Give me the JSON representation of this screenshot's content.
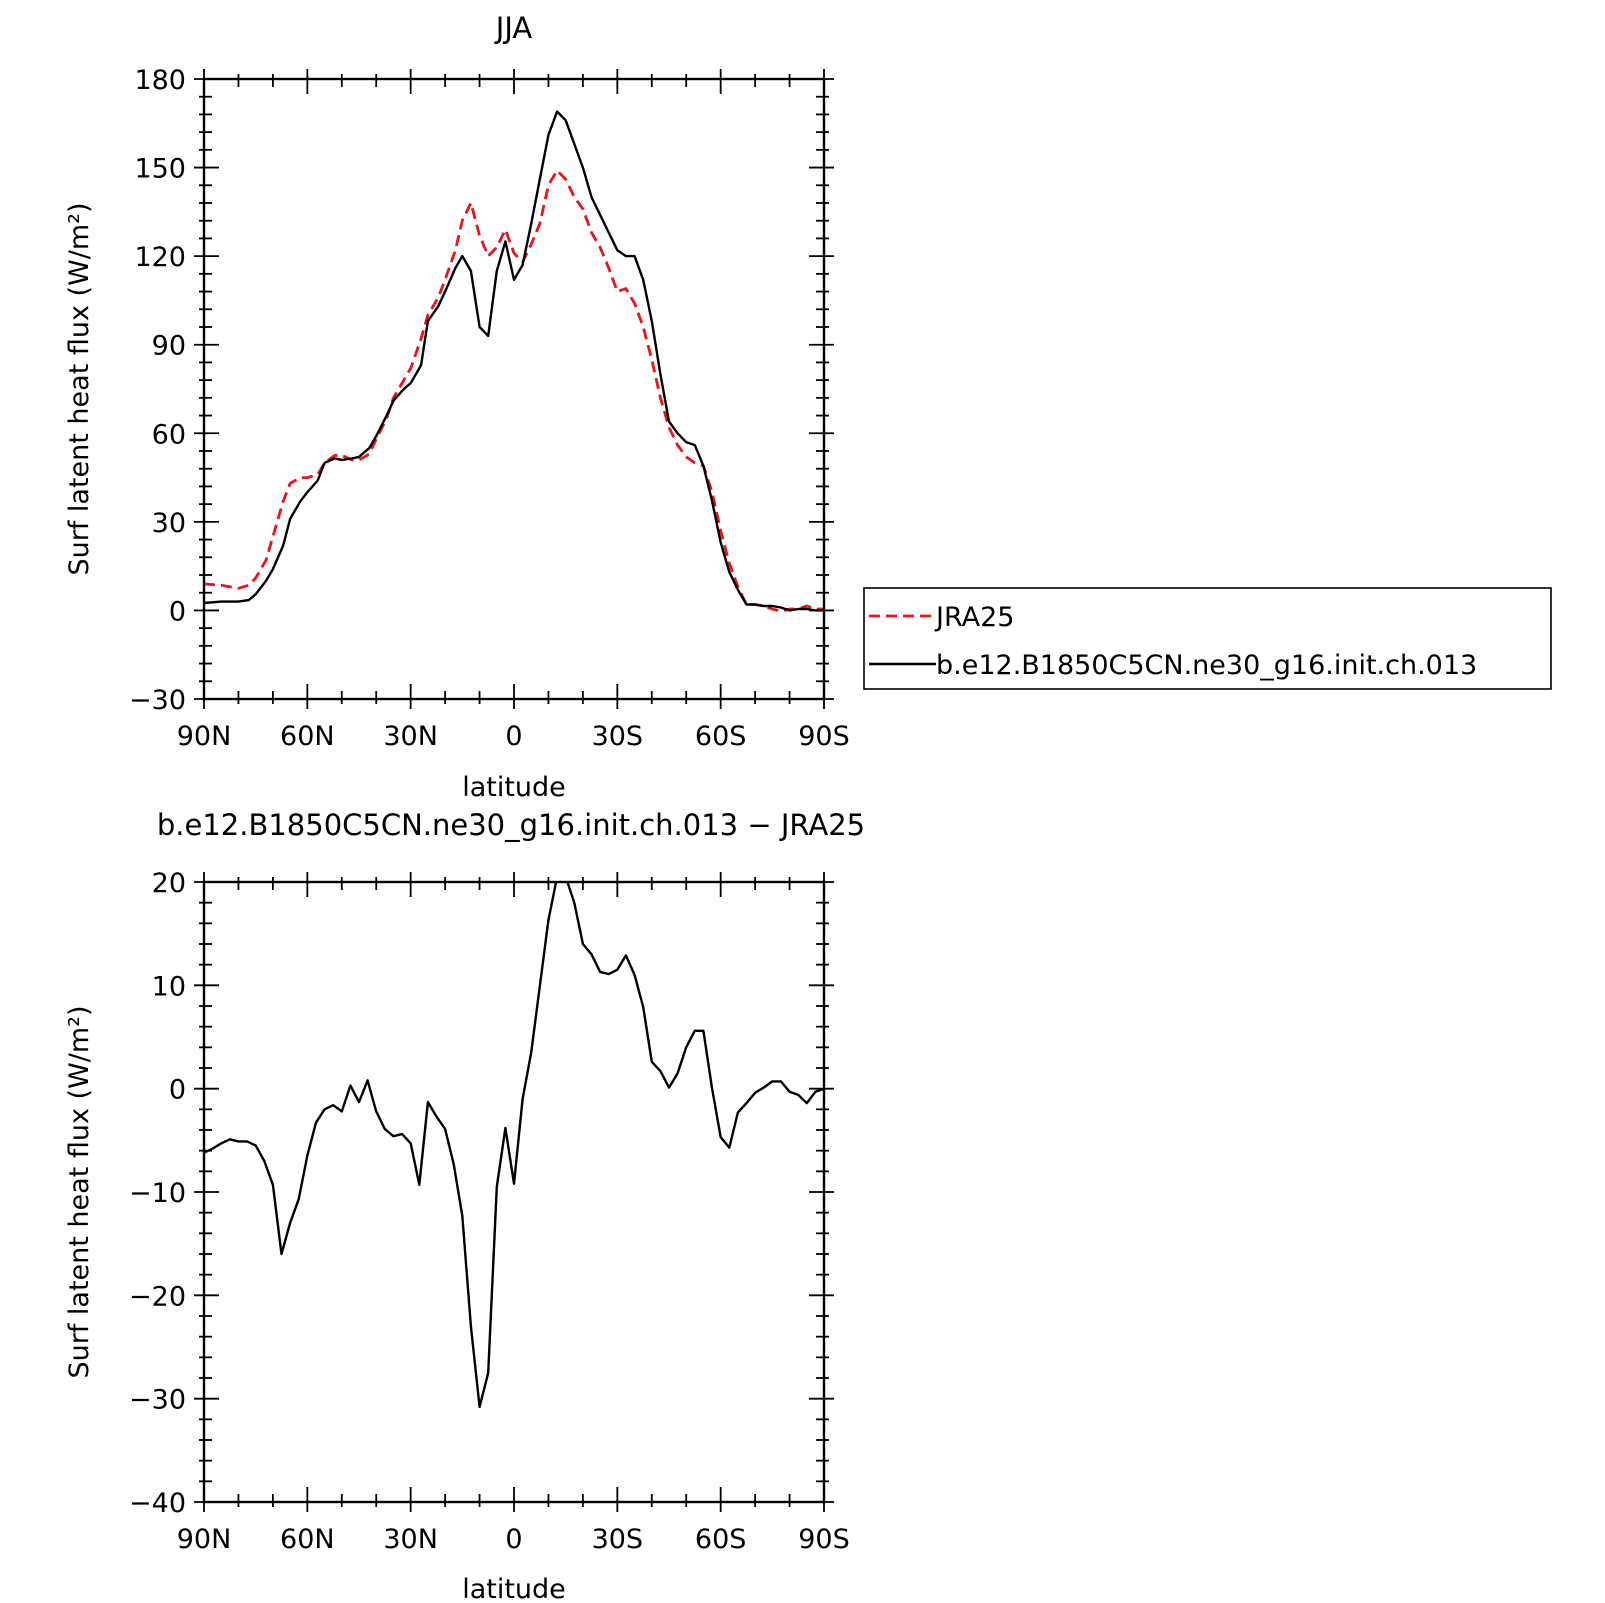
{
  "chart_data": [
    {
      "type": "line",
      "title": "JJA",
      "xlabel": "latitude",
      "ylabel": "Surf latent heat flux (W/m²)",
      "xlim": [
        90,
        -90
      ],
      "ylim": [
        -30,
        180
      ],
      "xticks": [
        90,
        60,
        30,
        0,
        -30,
        -60,
        -90
      ],
      "xtick_labels": [
        "90N",
        "60N",
        "30N",
        "0",
        "30S",
        "60S",
        "90S"
      ],
      "yticks": [
        -30,
        0,
        30,
        60,
        90,
        120,
        150,
        180
      ],
      "ytick_labels": [
        "−30",
        "0",
        "30",
        "60",
        "90",
        "120",
        "150",
        "180"
      ],
      "legend": {
        "position": "right",
        "entries": [
          "JRA25",
          "b.e12.B1850C5CN.ne30_g16.init.ch.013"
        ]
      },
      "series": [
        {
          "name": "JRA25",
          "color": "#e8141a",
          "style": "dashed",
          "x": [
            90,
            85,
            80,
            77,
            75,
            72,
            70,
            67,
            65,
            62,
            60,
            57,
            55,
            52,
            50,
            47,
            45,
            42,
            40,
            37,
            35,
            32,
            30,
            27,
            25,
            22,
            20,
            17,
            15,
            12.5,
            10,
            7.5,
            5,
            2.5,
            0,
            -2.5,
            -5,
            -7.5,
            -10,
            -12.5,
            -15,
            -17.5,
            -20,
            -22.5,
            -25,
            -27.5,
            -30,
            -32.5,
            -35,
            -37.5,
            -40,
            -42.5,
            -45,
            -47.5,
            -50,
            -52.5,
            -55,
            -57.5,
            -60,
            -62.5,
            -65,
            -67.5,
            -70,
            -72.5,
            -75,
            -77.5,
            -80,
            -82.5,
            -85,
            -87.5,
            -90
          ],
          "y": [
            9,
            8.5,
            7.5,
            8.5,
            11,
            17,
            25,
            37,
            43,
            45,
            45,
            46,
            50,
            52.5,
            52.5,
            51,
            51,
            53,
            58,
            65,
            72,
            78,
            82,
            92,
            100,
            106,
            112,
            122,
            132,
            138,
            127,
            120,
            123,
            129,
            121,
            118,
            124,
            131,
            144,
            149,
            146,
            140,
            136,
            128,
            123,
            116,
            108,
            109,
            104,
            96,
            85,
            72,
            62,
            56,
            52,
            50,
            49,
            40,
            27,
            16,
            8,
            2,
            2,
            1.5,
            0.5,
            -0.3,
            0.5,
            0.5,
            1.5,
            0.5,
            0.5
          ]
        },
        {
          "name": "b.e12.B1850C5CN.ne30_g16.init.ch.013",
          "color": "#000000",
          "style": "solid",
          "x": [
            90,
            85,
            80,
            77,
            75,
            72,
            70,
            67,
            65,
            62,
            60,
            57,
            55,
            52,
            50,
            47,
            45,
            42,
            40,
            37,
            35,
            32,
            30,
            27,
            25,
            22,
            20,
            17,
            15,
            12.5,
            10,
            7.5,
            5,
            2.5,
            0,
            -2.5,
            -5,
            -7.5,
            -10,
            -12.5,
            -15,
            -17.5,
            -20,
            -22.5,
            -25,
            -27.5,
            -30,
            -32.5,
            -35,
            -37.5,
            -40,
            -42.5,
            -45,
            -47.5,
            -50,
            -52.5,
            -55,
            -57.5,
            -60,
            -62.5,
            -65,
            -67.5,
            -70,
            -72.5,
            -75,
            -77.5,
            -80,
            -82.5,
            -85,
            -87.5,
            -90
          ],
          "y": [
            2.5,
            3,
            3,
            3.5,
            5.5,
            10,
            14,
            22,
            31,
            37,
            40,
            44,
            50,
            51.5,
            51,
            51.5,
            52,
            55,
            59,
            66,
            71,
            75,
            77,
            83,
            98,
            103,
            108,
            116,
            120,
            115,
            96,
            93,
            115,
            125,
            112,
            117,
            131,
            146,
            161,
            169,
            166,
            158,
            150,
            140,
            134,
            128,
            122,
            120,
            120,
            112,
            98,
            80,
            64,
            60,
            57,
            56,
            49,
            37,
            23,
            13,
            7,
            2,
            2,
            1.5,
            1.5,
            1,
            0,
            0.5,
            0.5,
            0,
            0
          ]
        }
      ]
    },
    {
      "type": "line",
      "title": "b.e12.B1850C5CN.ne30_g16.init.ch.013 − JRA25",
      "xlabel": "latitude",
      "ylabel": "Surf latent heat flux (W/m²)",
      "xlim": [
        90,
        -90
      ],
      "ylim": [
        -40,
        20
      ],
      "xticks": [
        90,
        60,
        30,
        0,
        -30,
        -60,
        -90
      ],
      "xtick_labels": [
        "90N",
        "60N",
        "30N",
        "0",
        "30S",
        "60S",
        "90S"
      ],
      "yticks": [
        -40,
        -30,
        -20,
        -10,
        0,
        10,
        20
      ],
      "ytick_labels": [
        "−40",
        "−30",
        "−20",
        "−10",
        "0",
        "10",
        "20"
      ],
      "series": [
        {
          "color": "#000000",
          "style": "solid",
          "x": [
            90,
            87.5,
            85,
            82.5,
            80,
            77.5,
            75,
            72.5,
            70,
            67.5,
            65,
            62.5,
            60,
            57.5,
            55,
            52.5,
            50,
            47.5,
            45,
            42.5,
            40,
            37.5,
            35,
            32.5,
            30,
            27.5,
            25,
            22.5,
            20,
            17.5,
            15,
            12.5,
            10,
            7.5,
            5,
            2.5,
            0,
            -2.5,
            -5,
            -7.5,
            -10,
            -12.5,
            -15,
            -17.5,
            -20,
            -22.5,
            -25,
            -27.5,
            -30,
            -32.5,
            -35,
            -37.5,
            -40,
            -42.5,
            -45,
            -47.5,
            -50,
            -52.5,
            -55,
            -57.5,
            -60,
            -62.5,
            -65,
            -67.5,
            -70,
            -72.5,
            -75,
            -77.5,
            -80,
            -82.5,
            -85,
            -87.5,
            -90
          ],
          "y": [
            -6.2,
            -5.8,
            -5.3,
            -4.9,
            -5.1,
            -5.1,
            -5.5,
            -7,
            -9.3,
            -16,
            -13,
            -10.7,
            -6.5,
            -3.3,
            -2,
            -1.6,
            -2.2,
            0.3,
            -1.3,
            0.8,
            -2.2,
            -3.9,
            -4.6,
            -4.4,
            -5.3,
            -9.3,
            -1.3,
            -2.7,
            -3.9,
            -7.3,
            -12.3,
            -23,
            -30.8,
            -27.5,
            -9.5,
            -3.8,
            -9.2,
            -1,
            3.5,
            9.9,
            16.3,
            20.5,
            20.5,
            18,
            14,
            13,
            11.3,
            11.1,
            11.5,
            12.9,
            11,
            7.9,
            2.6,
            1.7,
            0.1,
            1.5,
            4,
            5.6,
            5.6,
            0,
            -4.7,
            -5.7,
            -2.3,
            -1.4,
            -0.4,
            0.1,
            0.7,
            0.7,
            -0.3,
            -0.6,
            -1.4,
            -0.3,
            0
          ]
        }
      ]
    }
  ]
}
